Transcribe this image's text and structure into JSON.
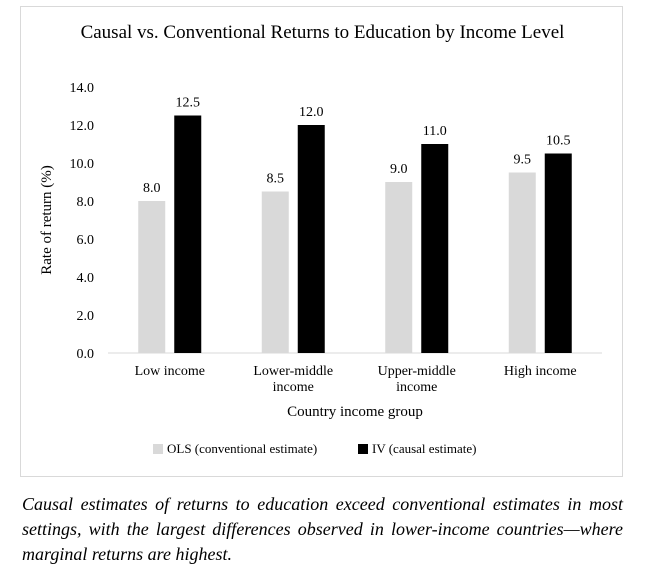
{
  "chart_data": {
    "type": "bar",
    "title": "Causal vs. Conventional Returns to Education by Income Level",
    "xlabel": "Country income group",
    "ylabel": "Rate of return (%)",
    "ylim": [
      0,
      14
    ],
    "yticks": [
      "0.0",
      "2.0",
      "4.0",
      "6.0",
      "8.0",
      "10.0",
      "12.0",
      "14.0"
    ],
    "categories": [
      [
        "Low income"
      ],
      [
        "Lower-middle",
        "income"
      ],
      [
        "Upper-middle",
        "income"
      ],
      [
        "High income"
      ]
    ],
    "series": [
      {
        "name": "OLS (conventional estimate)",
        "color": "#d9d9d9",
        "values": [
          8.0,
          8.5,
          9.0,
          9.5
        ],
        "labels": [
          "8.0",
          "8.5",
          "9.0",
          "9.5"
        ]
      },
      {
        "name": "IV (causal estimate)",
        "color": "#000000",
        "values": [
          12.5,
          12.0,
          11.0,
          10.5
        ],
        "labels": [
          "12.5",
          "12.0",
          "11.0",
          "10.5"
        ]
      }
    ],
    "grid": false,
    "legend_position": "bottom"
  },
  "caption": "Causal estimates of returns to education exceed conventional estimates in most settings, with the largest differences observed in lower-income countries—where marginal returns are highest."
}
